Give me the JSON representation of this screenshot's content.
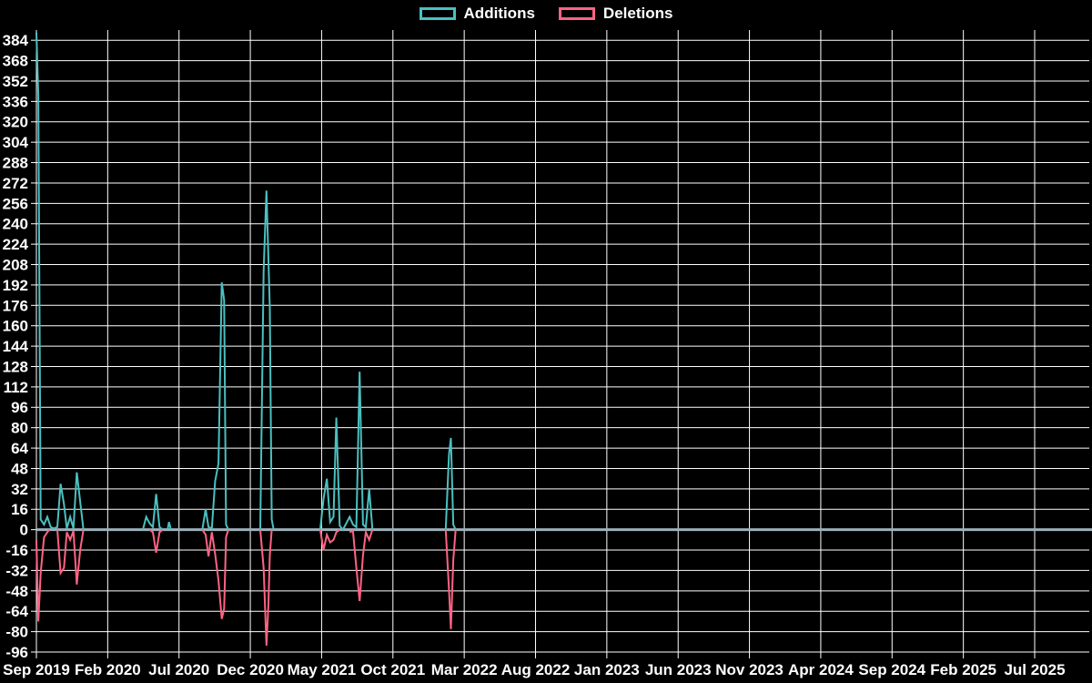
{
  "legend": {
    "additions_label": "Additions",
    "deletions_label": "Deletions"
  },
  "chart_data": {
    "type": "line",
    "title": "",
    "xlabel": "",
    "ylabel": "",
    "grid": true,
    "legend_position": "top-center",
    "background_color": "#000000",
    "colors": {
      "additions": "#4bc0c0",
      "deletions": "#ff6384",
      "gridline": "#ffffff",
      "zero_line": "#9db0ba",
      "text": "#ffffff"
    },
    "y_axis": {
      "min": -96,
      "max": 384,
      "step": 16,
      "ticks": [
        384,
        368,
        352,
        336,
        320,
        304,
        288,
        272,
        256,
        240,
        224,
        208,
        192,
        176,
        160,
        144,
        128,
        112,
        96,
        80,
        64,
        48,
        32,
        16,
        0,
        -16,
        -32,
        -48,
        -64,
        -80,
        -96
      ]
    },
    "x_axis": {
      "tick_interval": "5 months",
      "labels": [
        "Sep 2019",
        "Feb 2020",
        "Jul 2020",
        "Dec 2020",
        "May 2021",
        "Oct 2021",
        "Mar 2022",
        "Aug 2022",
        "Jan 2023",
        "Jun 2023",
        "Nov 2023",
        "Apr 2024",
        "Sep 2024",
        "Feb 2025",
        "Jul 2025"
      ],
      "range_start": "2019-09-01",
      "range_end": "2025-10-01"
    },
    "series": [
      {
        "name": "Additions",
        "color_key": "additions",
        "segments": [
          [
            [
              "2019-09-01",
              390
            ],
            [
              "2019-09-05",
              341
            ],
            [
              "2019-09-10",
              8
            ],
            [
              "2019-09-17",
              4
            ],
            [
              "2019-09-24",
              10
            ],
            [
              "2019-10-01",
              2
            ],
            [
              "2019-10-08",
              1
            ],
            [
              "2019-10-15",
              2
            ],
            [
              "2019-10-22",
              36
            ],
            [
              "2019-10-29",
              20
            ],
            [
              "2019-11-05",
              1
            ],
            [
              "2019-11-12",
              10
            ],
            [
              "2019-11-19",
              1
            ],
            [
              "2019-11-26",
              45
            ],
            [
              "2019-12-03",
              22
            ],
            [
              "2019-12-10",
              0
            ]
          ],
          [
            [
              "2020-04-15",
              0
            ],
            [
              "2020-04-22",
              10
            ],
            [
              "2020-04-29",
              5
            ],
            [
              "2020-05-06",
              2
            ],
            [
              "2020-05-13",
              28
            ],
            [
              "2020-05-20",
              2
            ],
            [
              "2020-05-27",
              0
            ]
          ],
          [
            [
              "2020-06-07",
              0
            ],
            [
              "2020-06-10",
              6
            ],
            [
              "2020-06-14",
              0
            ]
          ],
          [
            [
              "2020-08-20",
              0
            ],
            [
              "2020-08-27",
              16
            ],
            [
              "2020-09-03",
              2
            ],
            [
              "2020-09-10",
              1
            ],
            [
              "2020-09-17",
              38
            ],
            [
              "2020-09-24",
              52
            ],
            [
              "2020-10-01",
              194
            ],
            [
              "2020-10-06",
              180
            ],
            [
              "2020-10-10",
              4
            ],
            [
              "2020-10-15",
              0
            ]
          ],
          [
            [
              "2020-12-22",
              0
            ],
            [
              "2020-12-29",
              203
            ],
            [
              "2021-01-05",
              266
            ],
            [
              "2021-01-12",
              174
            ],
            [
              "2021-01-16",
              8
            ],
            [
              "2021-01-20",
              0
            ]
          ],
          [
            [
              "2021-04-28",
              0
            ],
            [
              "2021-05-05",
              24
            ],
            [
              "2021-05-12",
              40
            ],
            [
              "2021-05-19",
              6
            ],
            [
              "2021-05-26",
              10
            ],
            [
              "2021-06-02",
              88
            ],
            [
              "2021-06-09",
              3
            ],
            [
              "2021-06-16",
              0
            ],
            [
              "2021-06-30",
              10
            ],
            [
              "2021-07-07",
              4
            ],
            [
              "2021-07-14",
              2
            ],
            [
              "2021-07-21",
              124
            ],
            [
              "2021-07-28",
              4
            ],
            [
              "2021-08-04",
              2
            ],
            [
              "2021-08-11",
              32
            ],
            [
              "2021-08-18",
              0
            ]
          ],
          [
            [
              "2022-01-22",
              0
            ],
            [
              "2022-01-29",
              59
            ],
            [
              "2022-02-03",
              72
            ],
            [
              "2022-02-08",
              4
            ],
            [
              "2022-02-13",
              0
            ]
          ]
        ]
      },
      {
        "name": "Deletions",
        "color_key": "deletions",
        "segments": [
          [
            [
              "2019-09-01",
              -8
            ],
            [
              "2019-09-05",
              -72
            ],
            [
              "2019-09-10",
              -34
            ],
            [
              "2019-09-17",
              -6
            ],
            [
              "2019-09-24",
              -2
            ],
            [
              "2019-09-28",
              0
            ]
          ],
          [
            [
              "2019-10-15",
              0
            ],
            [
              "2019-10-22",
              -34
            ],
            [
              "2019-10-29",
              -30
            ],
            [
              "2019-11-05",
              -2
            ],
            [
              "2019-11-12",
              -8
            ],
            [
              "2019-11-19",
              -1
            ],
            [
              "2019-11-26",
              -43
            ],
            [
              "2019-12-03",
              -16
            ],
            [
              "2019-12-10",
              0
            ]
          ],
          [
            [
              "2020-04-29",
              0
            ],
            [
              "2020-05-06",
              -2
            ],
            [
              "2020-05-13",
              -18
            ],
            [
              "2020-05-20",
              -2
            ],
            [
              "2020-05-27",
              0
            ]
          ],
          [
            [
              "2020-08-20",
              0
            ],
            [
              "2020-08-27",
              -4
            ],
            [
              "2020-09-03",
              -21
            ],
            [
              "2020-09-10",
              -2
            ],
            [
              "2020-09-17",
              -19
            ],
            [
              "2020-09-24",
              -40
            ],
            [
              "2020-10-01",
              -70
            ],
            [
              "2020-10-06",
              -62
            ],
            [
              "2020-10-10",
              -6
            ],
            [
              "2020-10-15",
              0
            ]
          ],
          [
            [
              "2020-12-22",
              0
            ],
            [
              "2020-12-29",
              -30
            ],
            [
              "2021-01-05",
              -91
            ],
            [
              "2021-01-09",
              -60
            ],
            [
              "2021-01-12",
              -20
            ],
            [
              "2021-01-16",
              0
            ]
          ],
          [
            [
              "2021-04-28",
              0
            ],
            [
              "2021-05-05",
              -16
            ],
            [
              "2021-05-12",
              -4
            ],
            [
              "2021-05-19",
              -10
            ],
            [
              "2021-05-26",
              -8
            ],
            [
              "2021-06-02",
              -2
            ],
            [
              "2021-06-09",
              0
            ]
          ],
          [
            [
              "2021-06-30",
              -2
            ],
            [
              "2021-07-07",
              -1
            ],
            [
              "2021-07-14",
              -30
            ],
            [
              "2021-07-21",
              -56
            ],
            [
              "2021-07-28",
              -20
            ],
            [
              "2021-08-04",
              -2
            ],
            [
              "2021-08-11",
              -8
            ],
            [
              "2021-08-18",
              0
            ]
          ],
          [
            [
              "2022-01-22",
              0
            ],
            [
              "2022-01-29",
              -47
            ],
            [
              "2022-02-03",
              -78
            ],
            [
              "2022-02-08",
              -24
            ],
            [
              "2022-02-13",
              0
            ]
          ]
        ]
      }
    ]
  }
}
